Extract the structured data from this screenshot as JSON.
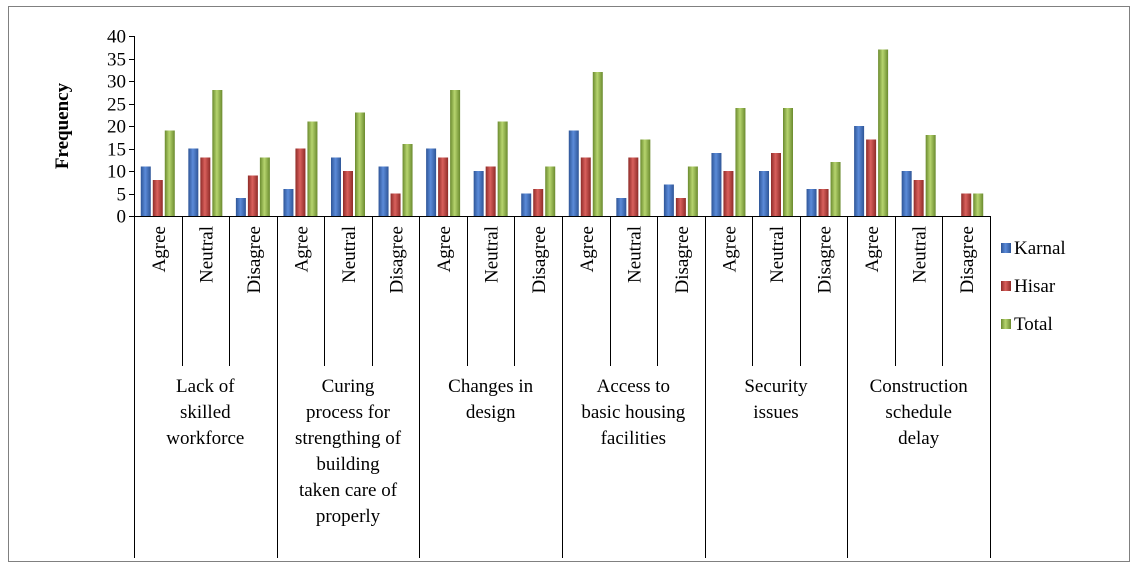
{
  "chart_data": {
    "type": "bar",
    "title": "",
    "ylabel": "Frequency",
    "xlabel": "",
    "ylim": [
      0,
      40
    ],
    "yticks": [
      0,
      5,
      10,
      15,
      20,
      25,
      30,
      35,
      40
    ],
    "grid": false,
    "legend_position": "right",
    "groups": [
      "Lack of skilled workforce",
      "Curing process for strengthing of building taken care of properly",
      "Changes in design",
      "Access to basic housing facilities",
      "Security issues",
      "Construction schedule delay"
    ],
    "group_label_lines": [
      [
        "Lack of",
        "skilled",
        "workforce"
      ],
      [
        "Curing",
        "process for",
        "strengthing of",
        "building",
        "taken care of",
        "properly"
      ],
      [
        "Changes in",
        "design"
      ],
      [
        "Access to",
        "basic housing",
        "facilities"
      ],
      [
        "Security",
        "issues"
      ],
      [
        "Construction",
        "schedule",
        "delay"
      ]
    ],
    "categories": [
      "Agree",
      "Neutral",
      "Disagree"
    ],
    "series": [
      {
        "name": "Karnal",
        "color": "#4472C4",
        "values": [
          [
            11,
            15,
            4
          ],
          [
            6,
            13,
            11
          ],
          [
            15,
            10,
            5
          ],
          [
            19,
            4,
            7
          ],
          [
            14,
            10,
            6
          ],
          [
            20,
            10,
            0
          ]
        ]
      },
      {
        "name": "Hisar",
        "color": "#C0504D",
        "values": [
          [
            8,
            13,
            9
          ],
          [
            15,
            10,
            5
          ],
          [
            13,
            11,
            6
          ],
          [
            13,
            13,
            4
          ],
          [
            10,
            14,
            6
          ],
          [
            17,
            8,
            5
          ]
        ]
      },
      {
        "name": "Total",
        "color": "#9BBB59",
        "values": [
          [
            19,
            28,
            13
          ],
          [
            21,
            23,
            16
          ],
          [
            28,
            21,
            11
          ],
          [
            32,
            17,
            11
          ],
          [
            24,
            24,
            12
          ],
          [
            37,
            18,
            5
          ]
        ]
      }
    ]
  }
}
